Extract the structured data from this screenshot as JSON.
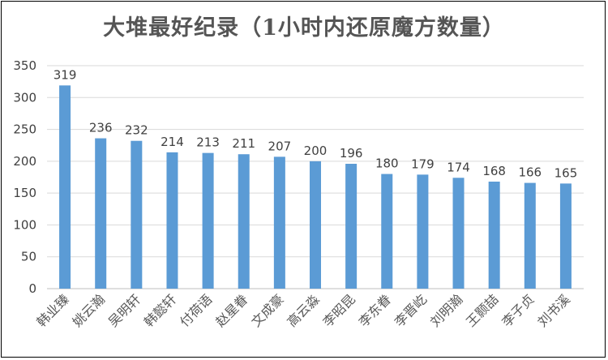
{
  "chart_data": {
    "type": "bar",
    "title": "大堆最好纪录（1小时内还原魔方数量）",
    "categories": [
      "韩业臻",
      "姚云瀚",
      "吴明轩",
      "韩懿轩",
      "付荷语",
      "赵星眷",
      "文成豪",
      "高云淼",
      "李昭昆",
      "李东眷",
      "李晋屹",
      "刘明瀚",
      "王颢喆",
      "李子贞",
      "刘书溪"
    ],
    "values": [
      319,
      236,
      232,
      214,
      213,
      211,
      207,
      200,
      196,
      180,
      179,
      174,
      168,
      166,
      165
    ],
    "yticks": [
      0,
      50,
      100,
      150,
      200,
      250,
      300,
      350
    ],
    "ylim": [
      0,
      350
    ],
    "grid": true,
    "bar_color": "#5b9bd5",
    "data_labels": true
  }
}
